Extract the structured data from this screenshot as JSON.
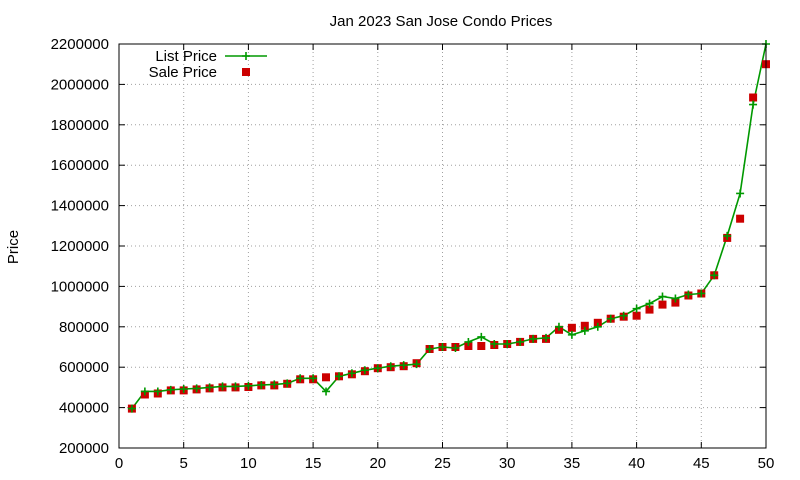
{
  "chart_data": {
    "type": "line",
    "title": "Jan 2023 San Jose Condo Prices",
    "xlabel": "",
    "ylabel": "Price",
    "xlim": [
      0,
      50
    ],
    "ylim": [
      200000,
      2200000
    ],
    "xticks": [
      "0",
      "5",
      "10",
      "15",
      "20",
      "25",
      "30",
      "35",
      "40",
      "45",
      "50"
    ],
    "yticks": [
      "200000",
      "400000",
      "600000",
      "800000",
      "1000000",
      "1200000",
      "1400000",
      "1600000",
      "1800000",
      "2000000",
      "2200000"
    ],
    "grid": true,
    "legend_position": "top-left",
    "x": [
      1,
      2,
      3,
      4,
      5,
      6,
      7,
      8,
      9,
      10,
      11,
      12,
      13,
      14,
      15,
      16,
      17,
      18,
      19,
      20,
      21,
      22,
      23,
      24,
      25,
      26,
      27,
      28,
      29,
      30,
      31,
      32,
      33,
      34,
      35,
      36,
      37,
      38,
      39,
      40,
      41,
      42,
      43,
      44,
      45,
      46,
      47,
      48,
      49,
      50
    ],
    "series": [
      {
        "name": "List Price",
        "style": "line-plus",
        "color": "#009900",
        "values": [
          395000,
          480000,
          480000,
          488000,
          492000,
          495000,
          500000,
          505000,
          505000,
          508000,
          512000,
          515000,
          520000,
          545000,
          545000,
          480000,
          555000,
          570000,
          585000,
          595000,
          605000,
          610000,
          615000,
          690000,
          700000,
          695000,
          725000,
          750000,
          715000,
          715000,
          725000,
          740000,
          745000,
          800000,
          760000,
          780000,
          800000,
          840000,
          855000,
          890000,
          915000,
          950000,
          940000,
          960000,
          965000,
          1055000,
          1250000,
          1460000,
          1900000,
          2200000
        ]
      },
      {
        "name": "Sale Price",
        "style": "square",
        "color": "#cc0000",
        "values": [
          395000,
          465000,
          470000,
          485000,
          485000,
          490000,
          495000,
          500000,
          500000,
          502000,
          510000,
          510000,
          518000,
          540000,
          540000,
          550000,
          555000,
          565000,
          580000,
          595000,
          600000,
          605000,
          620000,
          690000,
          700000,
          700000,
          705000,
          705000,
          710000,
          715000,
          725000,
          740000,
          740000,
          785000,
          795000,
          805000,
          820000,
          840000,
          850000,
          855000,
          885000,
          910000,
          920000,
          955000,
          965000,
          1055000,
          1240000,
          1335000,
          1935000,
          2100000
        ]
      }
    ]
  }
}
